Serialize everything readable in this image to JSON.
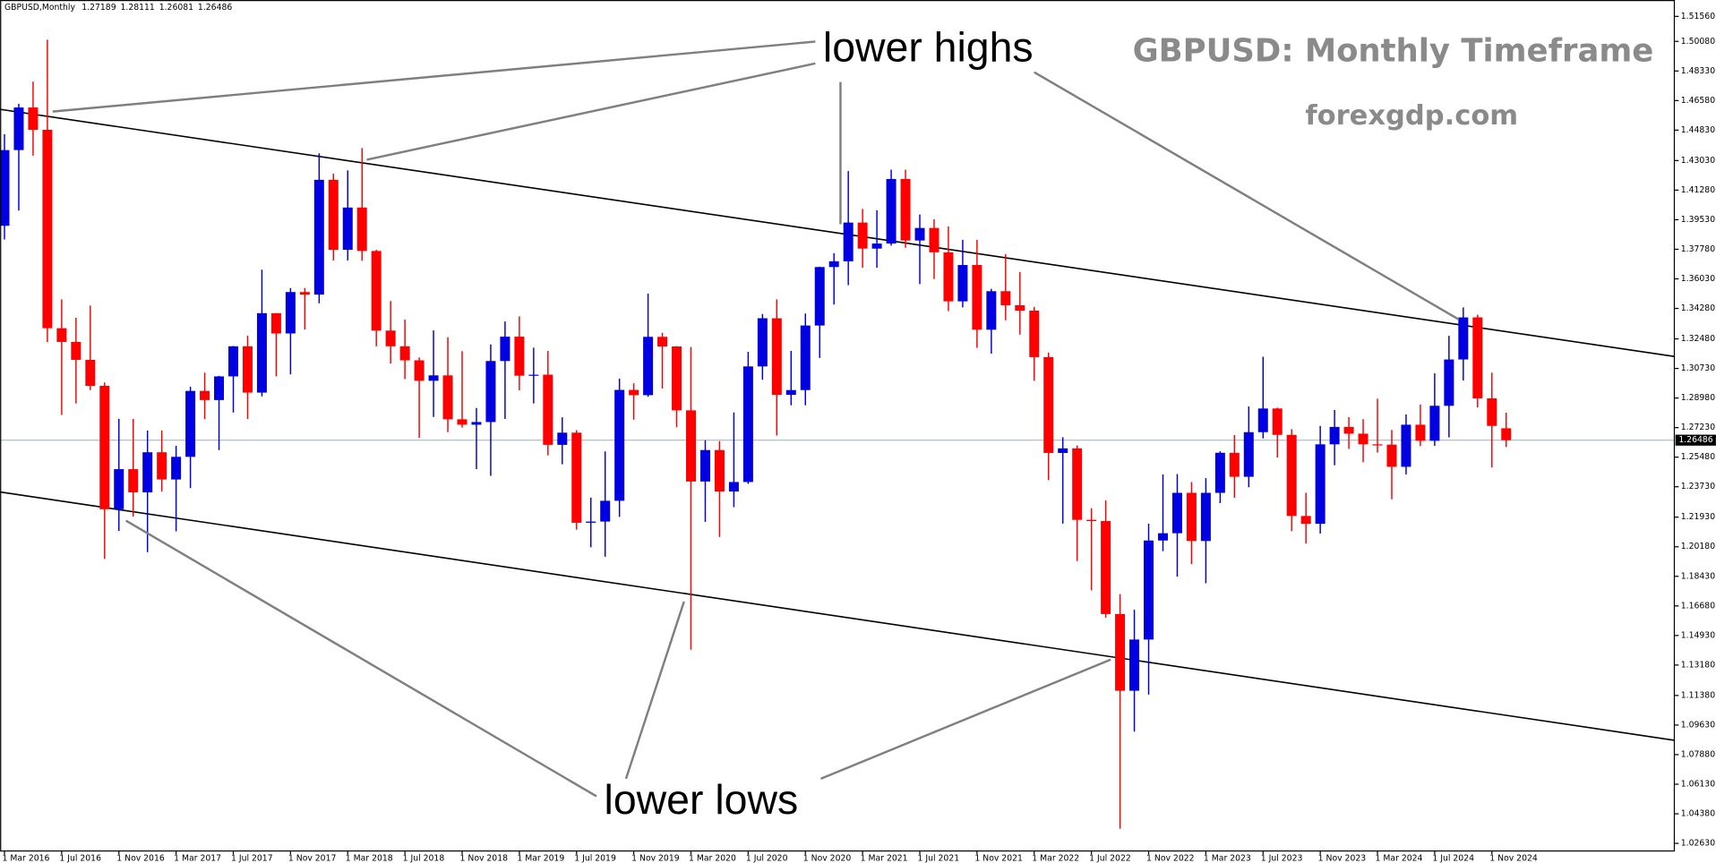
{
  "chart_data": {
    "type": "candlestick",
    "header": {
      "symbol": "GBPUSD,Monthly"
    },
    "title": "GBPUSD: Monthly Timeframe",
    "subtitle": "forexgdp.com",
    "annotations": [
      "lower highs",
      "lower lows"
    ],
    "up_color": "#0000e0",
    "down_color": "#ff0000",
    "categories": [
      "1 Mar 2016",
      null,
      null,
      null,
      "1 Jul 2016",
      null,
      null,
      null,
      "1 Nov 2016",
      null,
      null,
      null,
      "1 Mar 2017",
      null,
      null,
      null,
      "1 Jul 2017",
      null,
      null,
      null,
      "1 Nov 2017",
      null,
      null,
      null,
      "1 Mar 2018",
      null,
      null,
      null,
      "1 Jul 2018",
      null,
      null,
      null,
      "1 Nov 2018",
      null,
      null,
      null,
      "1 Mar 2019",
      null,
      null,
      null,
      "1 Jul 2019",
      null,
      null,
      null,
      "1 Nov 2019",
      null,
      null,
      null,
      "1 Mar 2020",
      null,
      null,
      null,
      "1 Jul 2020",
      null,
      null,
      null,
      "1 Nov 2020",
      null,
      null,
      null,
      "1 Mar 2021",
      null,
      null,
      null,
      "1 Jul 2021",
      null,
      null,
      null,
      "1 Nov 2021",
      null,
      null,
      null,
      "1 Mar 2022",
      null,
      null,
      null,
      "1 Jul 2022",
      null,
      null,
      null,
      "1 Nov 2022",
      null,
      null,
      null,
      "1 Mar 2023",
      null,
      null,
      null,
      "1 Jul 2023",
      null,
      null,
      null,
      "1 Nov 2023",
      null,
      null,
      null,
      "1 Mar 2024",
      null,
      null,
      null,
      "1 Jul 2024",
      null,
      null,
      null,
      "1 Nov 2024",
      null
    ],
    "open": [
      1.3917,
      1.4365,
      1.4617,
      1.4485,
      1.3311,
      1.323,
      1.3124,
      1.297,
      1.224,
      1.2477,
      1.234,
      1.2577,
      1.2416,
      1.255,
      1.294,
      1.2886,
      1.3026,
      1.3204,
      1.293,
      1.34,
      1.328,
      1.3525,
      1.351,
      1.4189,
      1.3775,
      1.4025,
      1.3768,
      1.3297,
      1.3204,
      1.3121,
      1.3,
      1.3032,
      1.2772,
      1.274,
      1.2756,
      1.3117,
      1.3261,
      1.303,
      1.3036,
      1.2621,
      1.2693,
      1.216,
      1.2167,
      1.229,
      1.2946,
      1.2915,
      1.326,
      1.3203,
      1.2825,
      1.2404,
      1.259,
      1.2345,
      1.2401,
      1.3085,
      1.337,
      1.2917,
      1.2945,
      1.3327,
      1.3673,
      1.3707,
      1.3936,
      1.3782,
      1.3812,
      1.4194,
      1.383,
      1.3904,
      1.376,
      1.347,
      1.3685,
      1.3302,
      1.353,
      1.3447,
      1.3415,
      1.314,
      1.2573,
      1.26,
      1.2177,
      1.217,
      1.162,
      1.1166,
      1.1469,
      1.2055,
      1.2098,
      1.2337,
      1.2052,
      1.2337,
      1.2574,
      1.2432,
      1.2696,
      1.2836,
      1.268,
      1.22,
      1.2154,
      1.2624,
      1.2727,
      1.2687,
      1.2624,
      1.2622,
      1.2491,
      1.274,
      1.2645,
      1.2852,
      1.3126,
      1.3375,
      1.2896,
      1.27189
    ],
    "high": [
      1.4459,
      1.4639,
      1.477,
      1.5018,
      1.3482,
      1.3373,
      1.3445,
      1.299,
      1.2775,
      1.2774,
      1.2706,
      1.2706,
      1.2615,
      1.2965,
      1.3048,
      1.3029,
      1.3206,
      1.3267,
      1.3657,
      1.34,
      1.3549,
      1.3549,
      1.4346,
      1.4225,
      1.4245,
      1.4377,
      1.3775,
      1.3472,
      1.3362,
      1.3138,
      1.3298,
      1.3258,
      1.3175,
      1.2839,
      1.3215,
      1.3351,
      1.3381,
      1.3196,
      1.3177,
      1.2784,
      1.2708,
      1.2309,
      1.2582,
      1.3013,
      1.2985,
      1.3516,
      1.3284,
      1.3205,
      1.32,
      1.2648,
      1.2643,
      1.2813,
      1.3171,
      1.3395,
      1.3482,
      1.3177,
      1.3398,
      1.3675,
      1.3755,
      1.4241,
      1.4017,
      1.4009,
      1.4249,
      1.4249,
      1.3984,
      1.3956,
      1.3913,
      1.3834,
      1.3834,
      1.3544,
      1.3749,
      1.3644,
      1.3437,
      1.3167,
      1.2666,
      1.2617,
      1.2246,
      1.2293,
      1.1738,
      1.1645,
      1.2154,
      1.2446,
      1.2448,
      1.2401,
      1.2424,
      1.2583,
      1.2679,
      1.2848,
      1.3142,
      1.2841,
      1.2714,
      1.2337,
      1.2733,
      1.2827,
      1.2785,
      1.2773,
      1.2894,
      1.2709,
      1.2801,
      1.286,
      1.3044,
      1.3266,
      1.3434,
      1.3391,
      1.3048,
      1.28111
    ],
    "low": [
      1.3836,
      1.4007,
      1.4332,
      1.3229,
      1.2798,
      1.2866,
      1.2945,
      1.1946,
      1.2111,
      1.2197,
      1.1986,
      1.2345,
      1.2109,
      1.2365,
      1.2773,
      1.259,
      1.2812,
      1.2774,
      1.2908,
      1.3026,
      1.3038,
      1.3303,
      1.3459,
      1.3712,
      1.3712,
      1.371,
      1.3204,
      1.3102,
      1.301,
      1.2662,
      1.2786,
      1.2696,
      1.2723,
      1.2477,
      1.2438,
      1.2774,
      1.2944,
      1.2866,
      1.2559,
      1.2506,
      1.2119,
      1.2015,
      1.1959,
      1.2195,
      1.277,
      1.2905,
      1.2954,
      1.2725,
      1.1409,
      1.2165,
      1.2076,
      1.2252,
      1.239,
      1.3006,
      1.2676,
      1.2855,
      1.2855,
      1.3135,
      1.3451,
      1.3566,
      1.3669,
      1.3669,
      1.38,
      1.3787,
      1.3572,
      1.3602,
      1.3412,
      1.3434,
      1.3195,
      1.3161,
      1.3358,
      1.3273,
      1.3,
      1.2412,
      1.2155,
      1.1933,
      1.176,
      1.1599,
      1.035,
      1.0924,
      1.1143,
      1.1992,
      1.1841,
      1.1915,
      1.1802,
      1.2276,
      1.2308,
      1.237,
      1.2659,
      1.2546,
      1.211,
      1.2037,
      1.2096,
      1.25,
      1.2597,
      1.2518,
      1.2575,
      1.2299,
      1.2446,
      1.2613,
      1.2615,
      1.2665,
      1.3002,
      1.2842,
      1.2487,
      1.26081
    ],
    "close": [
      1.4365,
      1.4617,
      1.4485,
      1.3311,
      1.323,
      1.3124,
      1.297,
      1.224,
      1.2477,
      1.234,
      1.2577,
      1.2416,
      1.255,
      1.294,
      1.2886,
      1.3026,
      1.3204,
      1.293,
      1.34,
      1.328,
      1.3525,
      1.351,
      1.4189,
      1.3775,
      1.4025,
      1.3768,
      1.3297,
      1.3204,
      1.3121,
      1.3,
      1.3032,
      1.2772,
      1.274,
      1.2756,
      1.3117,
      1.3261,
      1.303,
      1.3036,
      1.2621,
      1.2693,
      1.216,
      1.2167,
      1.229,
      1.2946,
      1.2915,
      1.326,
      1.3203,
      1.2825,
      1.2404,
      1.259,
      1.2345,
      1.2401,
      1.3085,
      1.337,
      1.2917,
      1.2945,
      1.3327,
      1.3673,
      1.3707,
      1.3936,
      1.3782,
      1.3812,
      1.4194,
      1.383,
      1.3904,
      1.376,
      1.347,
      1.3685,
      1.3302,
      1.353,
      1.3447,
      1.3415,
      1.314,
      1.2573,
      1.26,
      1.2177,
      1.217,
      1.162,
      1.1166,
      1.1469,
      1.2055,
      1.2098,
      1.2337,
      1.2052,
      1.2337,
      1.2574,
      1.2432,
      1.2696,
      1.2836,
      1.268,
      1.22,
      1.2154,
      1.2624,
      1.2727,
      1.2687,
      1.2624,
      1.2622,
      1.2491,
      1.274,
      1.2645,
      1.2852,
      1.3126,
      1.3375,
      1.2896,
      1.2733,
      1.26486
    ],
    "channel": [
      {
        "y": [
          1.4606,
          1.3144
        ]
      },
      {
        "y": [
          1.2342,
          1.0873
        ]
      }
    ],
    "ylim": [
      1.0218,
      1.5253
    ],
    "yticks": [
      {
        "value": 1.5156,
        "label": "1.51560"
      },
      {
        "value": 1.5008,
        "label": "1.50080"
      },
      {
        "value": 1.4833,
        "label": "1.48330"
      },
      {
        "value": 1.4658,
        "label": "1.46580"
      },
      {
        "value": 1.4483,
        "label": "1.44830"
      },
      {
        "value": 1.4303,
        "label": "1.43030"
      },
      {
        "value": 1.4128,
        "label": "1.41280"
      },
      {
        "value": 1.3953,
        "label": "1.39530"
      },
      {
        "value": 1.3778,
        "label": "1.37780"
      },
      {
        "value": 1.3603,
        "label": "1.36030"
      },
      {
        "value": 1.3428,
        "label": "1.34280"
      },
      {
        "value": 1.3248,
        "label": "1.32480"
      },
      {
        "value": 1.3073,
        "label": "1.30730"
      },
      {
        "value": 1.2898,
        "label": "1.28980"
      },
      {
        "value": 1.2723,
        "label": "1.27230"
      },
      {
        "value": 1.2548,
        "label": "1.25480"
      },
      {
        "value": 1.2373,
        "label": "1.23730"
      },
      {
        "value": 1.2193,
        "label": "1.21930"
      },
      {
        "value": 1.2018,
        "label": "1.20180"
      },
      {
        "value": 1.1843,
        "label": "1.18430"
      },
      {
        "value": 1.1668,
        "label": "1.16680"
      },
      {
        "value": 1.1493,
        "label": "1.14930"
      },
      {
        "value": 1.1318,
        "label": "1.13180"
      },
      {
        "value": 1.1138,
        "label": "1.11380"
      },
      {
        "value": 1.0963,
        "label": "1.09630"
      },
      {
        "value": 1.0788,
        "label": "1.07880"
      },
      {
        "value": 1.0613,
        "label": "1.06130"
      },
      {
        "value": 1.0438,
        "label": "1.04380"
      },
      {
        "value": 1.0263,
        "label": "1.02630"
      }
    ]
  }
}
